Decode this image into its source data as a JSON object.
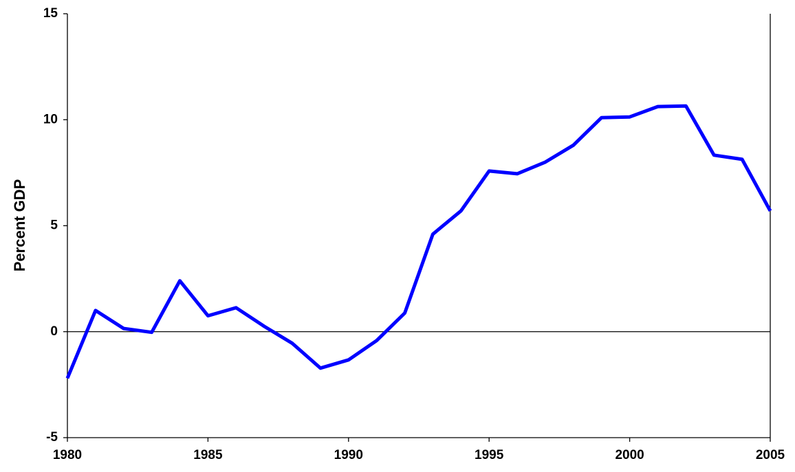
{
  "chart_data": {
    "type": "line",
    "y_label": "Percent GDP",
    "x": [
      1980,
      1981,
      1982,
      1983,
      1984,
      1985,
      1986,
      1987,
      1988,
      1989,
      1990,
      1991,
      1992,
      1993,
      1994,
      1995,
      1996,
      1997,
      1998,
      1999,
      2000,
      2001,
      2002,
      2003,
      2004,
      2005
    ],
    "series": [
      {
        "color": "#0000ff",
        "values": [
          -2.2,
          1.0,
          0.15,
          -0.03,
          2.4,
          0.75,
          1.13,
          0.25,
          -0.55,
          -1.72,
          -1.33,
          -0.42,
          0.88,
          4.6,
          5.7,
          7.58,
          7.45,
          8.0,
          8.8,
          10.1,
          10.13,
          10.62,
          10.65,
          8.33,
          8.13,
          5.7
        ]
      }
    ],
    "xlim": [
      1980,
      2005
    ],
    "xticks": [
      1980,
      1985,
      1990,
      1995,
      2000,
      2005
    ],
    "ylim": [
      -5,
      15
    ],
    "yticks": [
      -5,
      0,
      5,
      10,
      15
    ],
    "zero_line": true
  }
}
